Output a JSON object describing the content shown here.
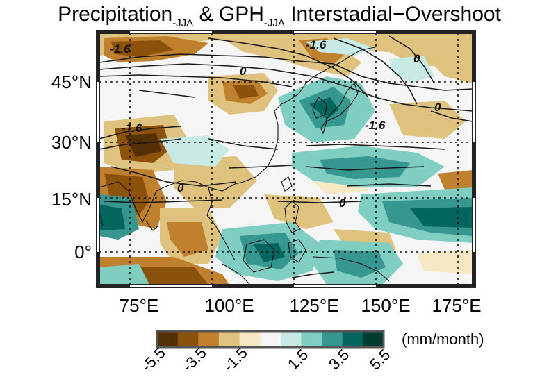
{
  "title": {
    "main_1": "Precipitation",
    "sub_1": "-JJA",
    "main_2": " & GPH",
    "sub_2": "-JJA",
    "main_3": " Interstadial−Overshoot"
  },
  "map": {
    "lat_labels": [
      "45°N",
      "30°N",
      "15°N",
      "0°"
    ],
    "lon_labels": [
      "75°E",
      "100°E",
      "125°E",
      "150°E",
      "175°E"
    ],
    "contour_labels": [
      "-1.6",
      "0",
      "0",
      "-1.6",
      "-1.6",
      "0",
      "0",
      "-1.6",
      "0"
    ]
  },
  "colorbar": {
    "unit": "(mm/month)",
    "tick_labels": [
      "-5.5",
      "-3.5",
      "-1.5",
      "1.5",
      "3.5",
      "5.5"
    ],
    "colors": [
      "#543005",
      "#8c510a",
      "#bf812d",
      "#dfc27d",
      "#f6e8c3",
      "#f5f5f5",
      "#c7eae5",
      "#80cdc1",
      "#35978f",
      "#01665e",
      "#003c30"
    ]
  }
}
